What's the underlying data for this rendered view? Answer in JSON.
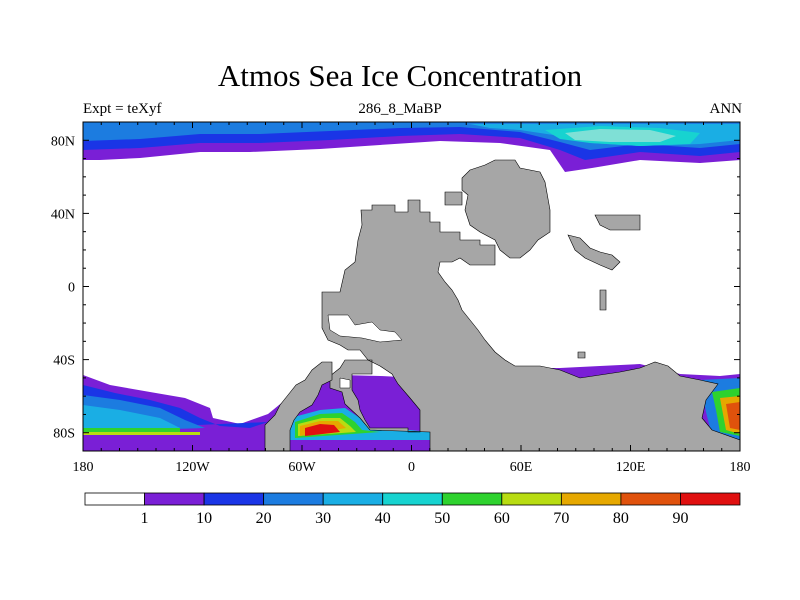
{
  "header": {
    "title": "Atmos Sea Ice Concentration",
    "left": "Expt = teXyf",
    "center": "286_8_MaBP",
    "right": "ANN"
  },
  "map": {
    "lon_range": [
      -180,
      180
    ],
    "lat_range": [
      -90,
      90
    ],
    "x_ticks": [
      {
        "lon": -180,
        "label": "180"
      },
      {
        "lon": -120,
        "label": "120W"
      },
      {
        "lon": -60,
        "label": "60W"
      },
      {
        "lon": 0,
        "label": "0"
      },
      {
        "lon": 60,
        "label": "60E"
      },
      {
        "lon": 120,
        "label": "120E"
      },
      {
        "lon": 180,
        "label": "180"
      }
    ],
    "y_ticks": [
      {
        "lat": 80,
        "label": "80N"
      },
      {
        "lat": 40,
        "label": "40N"
      },
      {
        "lat": 0,
        "label": "0"
      },
      {
        "lat": -40,
        "label": "40S"
      },
      {
        "lat": -80,
        "label": "80S"
      }
    ],
    "land_color": "#a6a6a6",
    "ocean_color": "#ffffff"
  },
  "colorbar": {
    "colors": [
      "#ffffff",
      "#7a1fd6",
      "#1a35e6",
      "#1c7ce0",
      "#1aaee4",
      "#17d3d0",
      "#2ed22e",
      "#b8dc12",
      "#e6a800",
      "#e0520c",
      "#e01010"
    ],
    "labels": [
      "1",
      "10",
      "20",
      "30",
      "40",
      "50",
      "60",
      "70",
      "80",
      "90"
    ]
  }
}
